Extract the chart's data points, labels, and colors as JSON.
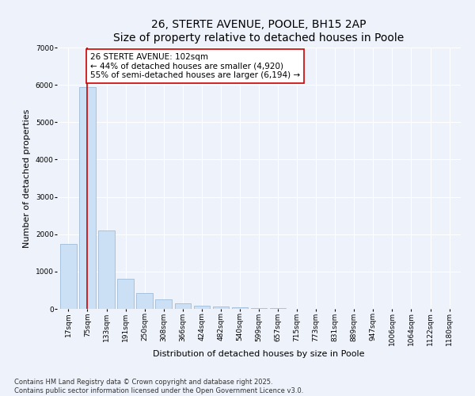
{
  "title": "26, STERTE AVENUE, POOLE, BH15 2AP",
  "subtitle": "Size of property relative to detached houses in Poole",
  "xlabel": "Distribution of detached houses by size in Poole",
  "ylabel": "Number of detached properties",
  "categories": [
    "17sqm",
    "75sqm",
    "133sqm",
    "191sqm",
    "250sqm",
    "308sqm",
    "366sqm",
    "424sqm",
    "482sqm",
    "540sqm",
    "599sqm",
    "657sqm",
    "715sqm",
    "773sqm",
    "831sqm",
    "889sqm",
    "947sqm",
    "1006sqm",
    "1064sqm",
    "1122sqm",
    "1180sqm"
  ],
  "values": [
    1750,
    5950,
    2100,
    800,
    420,
    260,
    150,
    90,
    60,
    45,
    30,
    20,
    10,
    5,
    3,
    2,
    1,
    1,
    1,
    0,
    0
  ],
  "bar_color": "#cce0f5",
  "bar_edge_color": "#a0bcd8",
  "vline_x": 1,
  "vline_color": "#cc0000",
  "annotation_text": "26 STERTE AVENUE: 102sqm\n← 44% of detached houses are smaller (4,920)\n55% of semi-detached houses are larger (6,194) →",
  "annotation_box_color": "#ffffff",
  "annotation_box_edge": "#cc0000",
  "ylim": [
    0,
    7000
  ],
  "yticks": [
    0,
    1000,
    2000,
    3000,
    4000,
    5000,
    6000,
    7000
  ],
  "bg_color": "#eef2fb",
  "plot_bg_color": "#eef2fb",
  "footer1": "Contains HM Land Registry data © Crown copyright and database right 2025.",
  "footer2": "Contains public sector information licensed under the Open Government Licence v3.0.",
  "title_fontsize": 10,
  "axis_label_fontsize": 8,
  "tick_fontsize": 6.5,
  "annotation_fontsize": 7.5
}
